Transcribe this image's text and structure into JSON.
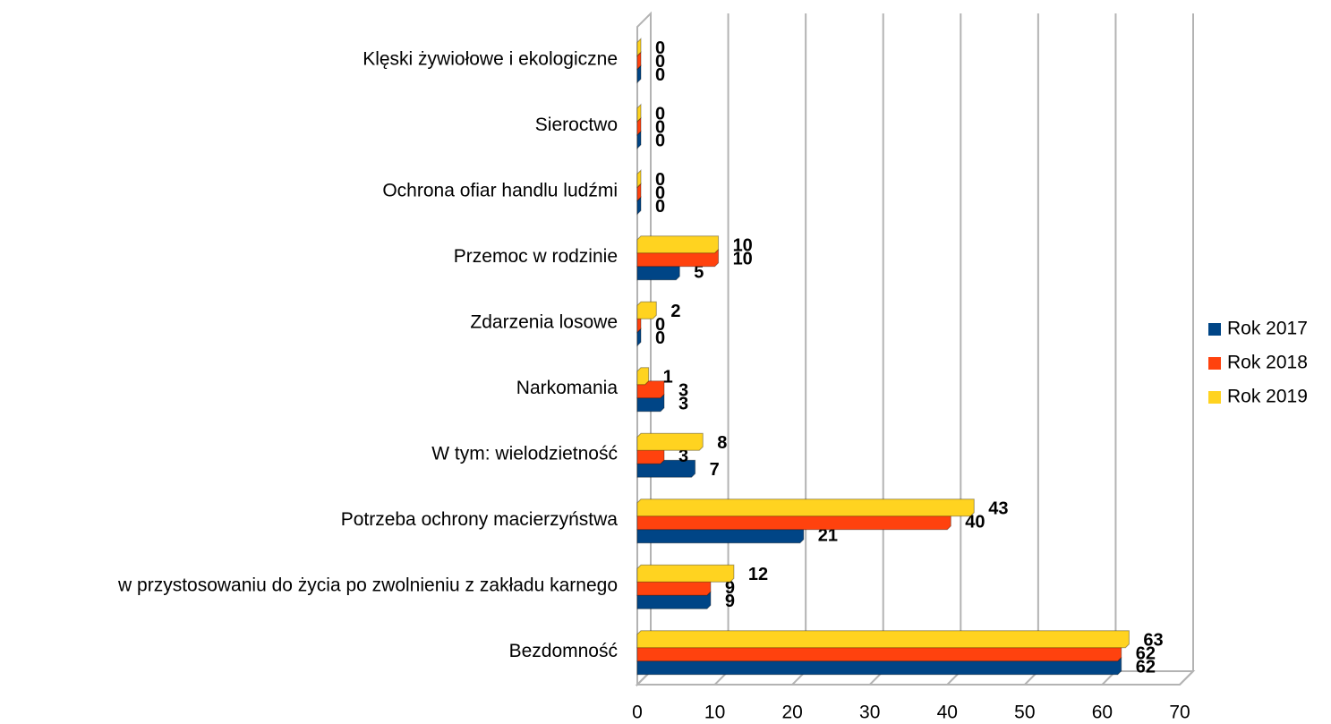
{
  "chart_data": {
    "type": "bar",
    "orientation": "horizontal",
    "categories": [
      "Klęski żywiołowe i ekologiczne",
      "Sieroctwo",
      "Ochrona ofiar handlu ludźmi",
      "Przemoc w rodzinie",
      "Zdarzenia losowe",
      "Narkomania",
      "W tym: wielodzietność",
      "Potrzeba ochrony macierzyństwa",
      "w przystosowaniu do życia po zwolnieniu z zakładu karnego",
      "Bezdomność"
    ],
    "series": [
      {
        "name": "Rok 2017",
        "color": "#004586",
        "values": [
          0,
          0,
          0,
          5,
          0,
          3,
          7,
          21,
          9,
          62
        ]
      },
      {
        "name": "Rok 2018",
        "color": "#ff420e",
        "values": [
          0,
          0,
          0,
          10,
          0,
          3,
          3,
          40,
          9,
          62
        ]
      },
      {
        "name": "Rok 2019",
        "color": "#ffd320",
        "values": [
          0,
          0,
          0,
          10,
          2,
          1,
          8,
          43,
          12,
          63
        ]
      }
    ],
    "xlim": [
      0,
      70
    ],
    "xticks": [
      0,
      10,
      20,
      30,
      40,
      50,
      60,
      70
    ],
    "grid": true,
    "legend": "right"
  }
}
